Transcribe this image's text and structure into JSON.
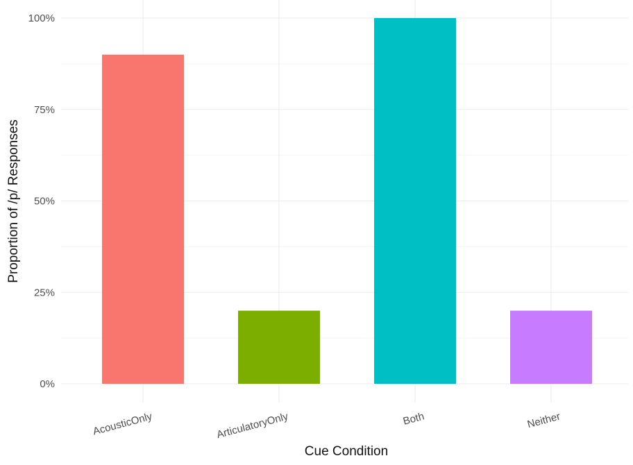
{
  "chart_data": {
    "type": "bar",
    "title": "",
    "xlabel": "Cue Condition",
    "ylabel": "Proportion of /p/ Responses",
    "categories": [
      "AcousticOnly",
      "ArticulatoryOnly",
      "Both",
      "Neither"
    ],
    "values": [
      0.9,
      0.2,
      1.0,
      0.2
    ],
    "colors": [
      "#F8766D",
      "#7CAE00",
      "#00BFC4",
      "#C77CFF"
    ],
    "ylim": [
      0,
      1
    ],
    "yticks": [
      0,
      0.25,
      0.5,
      0.75,
      1.0
    ],
    "ytick_labels": [
      "0%",
      "25%",
      "50%",
      "75%",
      "100%"
    ],
    "grid": true,
    "legend": "none"
  }
}
